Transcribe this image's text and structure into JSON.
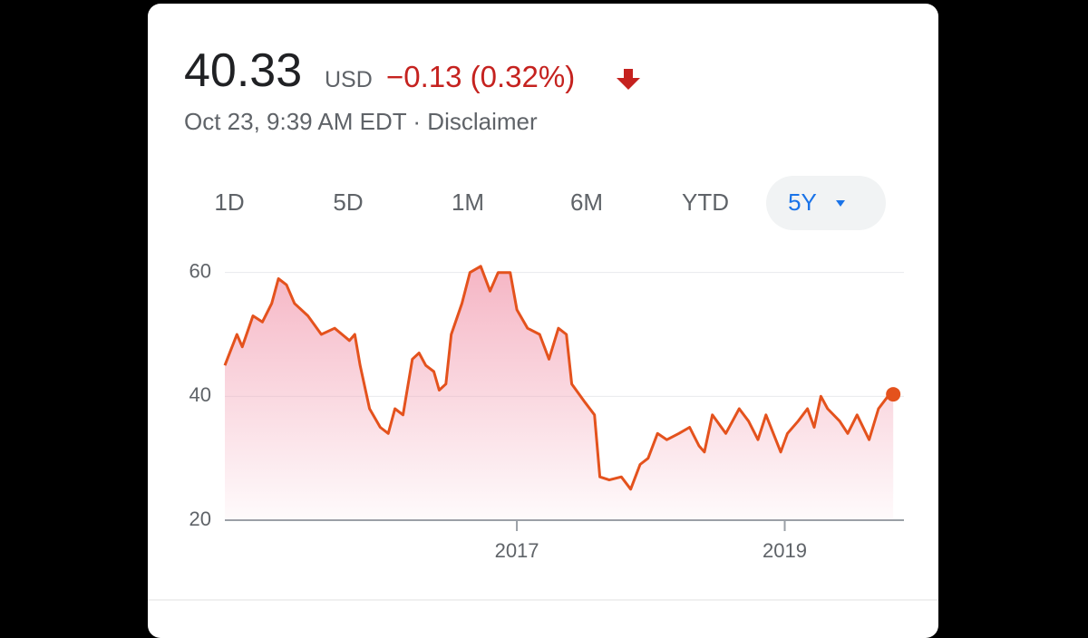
{
  "header": {
    "price": "40.33",
    "currency": "USD",
    "change": "−0.13 (0.32%)",
    "timestamp": "Oct 23, 9:39 AM EDT · Disclaimer"
  },
  "tabs": [
    "1D",
    "5D",
    "1M",
    "6M",
    "YTD",
    "5Y"
  ],
  "chart_data": {
    "type": "line",
    "color": "#e4521d",
    "fill": "#f3a3b6",
    "grid": true,
    "x": [
      2014.82,
      2014.91,
      2014.95,
      2015.03,
      2015.1,
      2015.17,
      2015.22,
      2015.28,
      2015.34,
      2015.44,
      2015.54,
      2015.64,
      2015.75,
      2015.79,
      2015.83,
      2015.9,
      2015.98,
      2016.04,
      2016.09,
      2016.15,
      2016.22,
      2016.27,
      2016.32,
      2016.38,
      2016.42,
      2016.47,
      2016.51,
      2016.59,
      2016.65,
      2016.73,
      2016.8,
      2016.86,
      2016.95,
      2017.0,
      2017.08,
      2017.17,
      2017.24,
      2017.31,
      2017.37,
      2017.41,
      2017.51,
      2017.58,
      2017.62,
      2017.69,
      2017.78,
      2017.85,
      2017.92,
      2017.98,
      2018.05,
      2018.12,
      2018.21,
      2018.29,
      2018.36,
      2018.4,
      2018.46,
      2018.56,
      2018.66,
      2018.73,
      2018.8,
      2018.86,
      2018.97,
      2019.02,
      2019.1,
      2019.17,
      2019.22,
      2019.27,
      2019.32,
      2019.41,
      2019.47,
      2019.54,
      2019.63,
      2019.7,
      2019.77,
      2019.81
    ],
    "values": [
      45,
      50,
      48,
      53,
      52,
      55,
      59,
      58,
      55,
      53,
      50,
      51,
      49,
      50,
      45,
      38,
      35,
      34,
      38,
      37,
      46,
      47,
      45,
      44,
      41,
      42,
      50,
      55,
      60,
      61,
      57,
      60,
      60,
      54,
      51,
      50,
      46,
      51,
      50,
      42,
      39,
      37,
      27,
      26.5,
      27,
      25,
      29,
      30,
      34,
      33,
      34,
      35,
      32,
      31,
      37,
      34,
      38,
      36,
      33,
      37,
      31,
      34,
      36,
      38,
      35,
      40,
      38,
      36,
      34,
      37,
      33,
      38,
      40,
      40.33
    ],
    "xlim": [
      2014.82,
      2019.89
    ],
    "xticks": [
      2017,
      2019
    ],
    "ylim": [
      20,
      62
    ],
    "yticks": [
      20,
      40,
      60
    ]
  }
}
